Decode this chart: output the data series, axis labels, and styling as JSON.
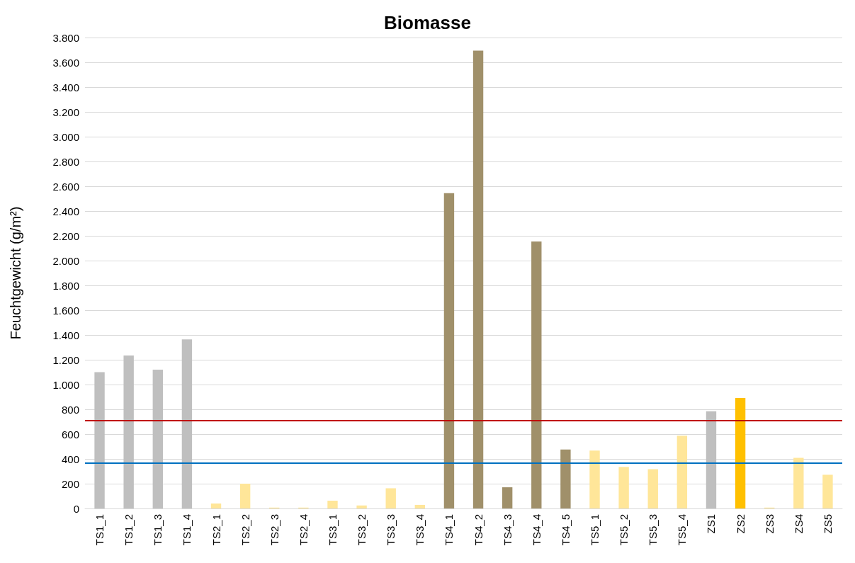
{
  "chart_data": {
    "type": "bar",
    "title": "Biomasse",
    "ylabel": "Feuchtgewicht (g/m²)",
    "categories": [
      "TS1_1",
      "TS1_2",
      "TS1_3",
      "TS1_4",
      "TS2_1",
      "TS2_2",
      "TS2_3",
      "TS2_4",
      "TS3_1",
      "TS3_2",
      "TS3_3",
      "TS3_4",
      "TS4_1",
      "TS4_2",
      "TS4_3",
      "TS4_4",
      "TS4_5",
      "TS5_1",
      "TS5_2",
      "TS5_3",
      "TS5_4",
      "ZS1",
      "ZS2",
      "ZS3",
      "ZS4",
      "ZS5"
    ],
    "values": [
      1100,
      1235,
      1120,
      1365,
      40,
      200,
      7,
      7,
      63,
      25,
      163,
      29,
      2545,
      3695,
      171,
      2155,
      476,
      467,
      335,
      317,
      587,
      784,
      891,
      7,
      408,
      272
    ],
    "colors": [
      "#bfbfbf",
      "#bfbfbf",
      "#bfbfbf",
      "#bfbfbf",
      "#ffe699",
      "#ffe699",
      "#ffe699",
      "#ffe699",
      "#ffe699",
      "#ffe699",
      "#ffe699",
      "#ffe699",
      "#a0906a",
      "#a0906a",
      "#a0906a",
      "#a0906a",
      "#a0906a",
      "#ffe699",
      "#ffe699",
      "#ffe699",
      "#ffe699",
      "#bfbfbf",
      "#ffc000",
      "#ffe699",
      "#ffe699",
      "#ffe699"
    ],
    "ylim": [
      0,
      3800
    ],
    "yticks": [
      0,
      {
        "value": 200,
        "label": "200"
      },
      {
        "value": 400,
        "label": "400"
      },
      {
        "value": 600,
        "label": "600"
      },
      {
        "value": 800,
        "label": "800"
      },
      {
        "value": 1000,
        "label": "1.000"
      },
      {
        "value": 1200,
        "label": "1.200"
      },
      {
        "value": 1400,
        "label": "1.400"
      },
      {
        "value": 1600,
        "label": "1.600"
      },
      {
        "value": 1800,
        "label": "1.800"
      },
      {
        "value": 2000,
        "label": "2.000"
      },
      {
        "value": 2200,
        "label": "2.200"
      },
      {
        "value": 2400,
        "label": "2.400"
      },
      {
        "value": 2600,
        "label": "2.600"
      },
      {
        "value": 2800,
        "label": "2.800"
      },
      {
        "value": 3000,
        "label": "3.000"
      },
      {
        "value": 3200,
        "label": "3.200"
      },
      {
        "value": 3400,
        "label": "3.400"
      },
      {
        "value": 3600,
        "label": "3.600"
      },
      {
        "value": 3800,
        "label": "3.800"
      }
    ],
    "grid": "y",
    "ref_lines": [
      {
        "axis": "y",
        "value": 711,
        "color": "#c00000"
      },
      {
        "axis": "y",
        "value": 370,
        "color": "#0070c0"
      }
    ]
  }
}
